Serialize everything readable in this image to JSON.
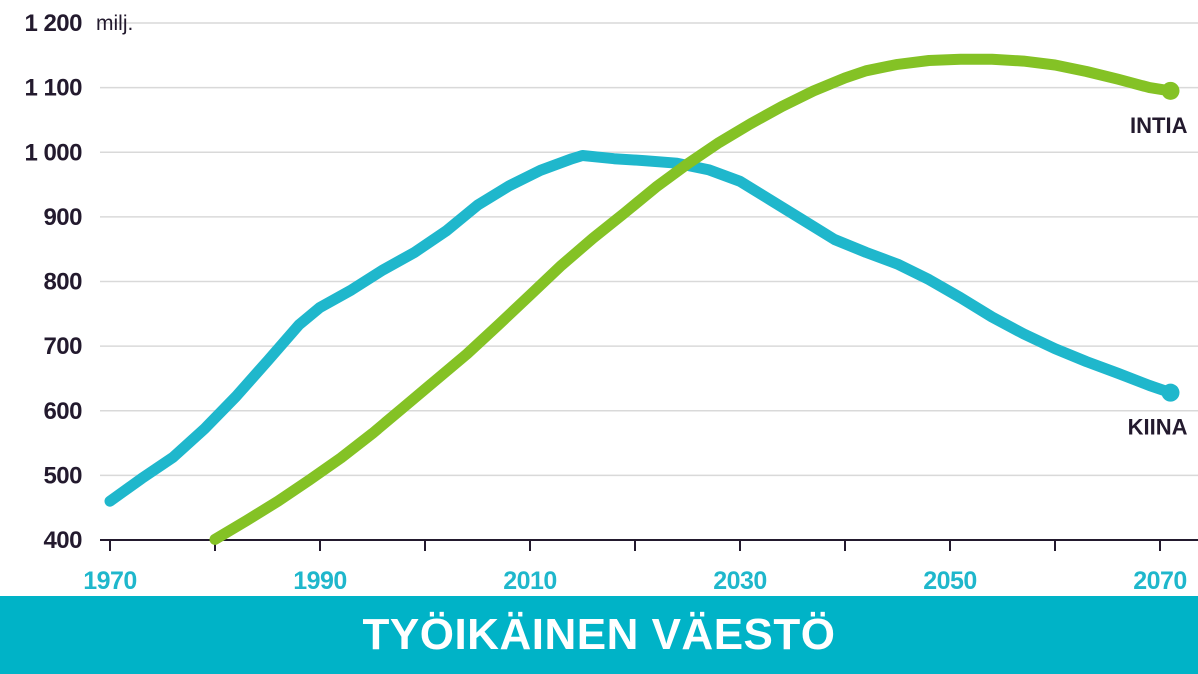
{
  "title": "TYÖIKÄINEN VÄESTÖ",
  "colors": {
    "intia": "#84c225",
    "kiina": "#1fb7cc",
    "title_bar": "#00b3c7",
    "x_tick": "#1fb7cc",
    "y_tick": "#231a2e",
    "grid": "#d9d9d9",
    "axis": "#231a2e"
  },
  "chart_data": {
    "type": "line",
    "unit": "milj.",
    "ylim": [
      400,
      1200
    ],
    "yticks": [
      400,
      500,
      600,
      700,
      800,
      900,
      1000,
      1100,
      1200
    ],
    "ytick_labels": [
      "400",
      "500",
      "600",
      "700",
      "800",
      "900",
      "1 000",
      "1 100",
      "1 200"
    ],
    "xlim": [
      1970,
      2070
    ],
    "xticks": [
      1970,
      1980,
      1990,
      2000,
      2010,
      2020,
      2030,
      2040,
      2050,
      2060,
      2070
    ],
    "xtick_labels": [
      "1970",
      "1990",
      "2010",
      "2030",
      "2050",
      "2070"
    ],
    "grid": true,
    "series": [
      {
        "name": "KIINA",
        "color": "#1fb7cc",
        "points": [
          [
            1970,
            460
          ],
          [
            1973,
            495
          ],
          [
            1976,
            528
          ],
          [
            1979,
            572
          ],
          [
            1982,
            622
          ],
          [
            1985,
            677
          ],
          [
            1988,
            733
          ],
          [
            1990,
            760
          ],
          [
            1993,
            787
          ],
          [
            1996,
            818
          ],
          [
            1999,
            845
          ],
          [
            2002,
            878
          ],
          [
            2005,
            918
          ],
          [
            2008,
            948
          ],
          [
            2011,
            972
          ],
          [
            2014,
            990
          ],
          [
            2015,
            995
          ],
          [
            2018,
            990
          ],
          [
            2021,
            987
          ],
          [
            2024,
            983
          ],
          [
            2027,
            973
          ],
          [
            2030,
            955
          ],
          [
            2033,
            925
          ],
          [
            2036,
            895
          ],
          [
            2039,
            865
          ],
          [
            2042,
            845
          ],
          [
            2045,
            827
          ],
          [
            2048,
            803
          ],
          [
            2051,
            775
          ],
          [
            2054,
            745
          ],
          [
            2057,
            719
          ],
          [
            2060,
            696
          ],
          [
            2063,
            676
          ],
          [
            2066,
            658
          ],
          [
            2069,
            639
          ],
          [
            2071,
            628
          ]
        ]
      },
      {
        "name": "INTIA",
        "color": "#84c225",
        "points": [
          [
            1980,
            401
          ],
          [
            1983,
            430
          ],
          [
            1986,
            460
          ],
          [
            1989,
            493
          ],
          [
            1992,
            527
          ],
          [
            1995,
            565
          ],
          [
            1998,
            606
          ],
          [
            2001,
            647
          ],
          [
            2004,
            688
          ],
          [
            2007,
            733
          ],
          [
            2010,
            779
          ],
          [
            2013,
            825
          ],
          [
            2016,
            867
          ],
          [
            2019,
            906
          ],
          [
            2022,
            946
          ],
          [
            2025,
            982
          ],
          [
            2028,
            1015
          ],
          [
            2031,
            1044
          ],
          [
            2034,
            1071
          ],
          [
            2037,
            1095
          ],
          [
            2040,
            1115
          ],
          [
            2042,
            1126
          ],
          [
            2045,
            1136
          ],
          [
            2048,
            1142
          ],
          [
            2051,
            1144
          ],
          [
            2054,
            1144
          ],
          [
            2057,
            1141
          ],
          [
            2060,
            1135
          ],
          [
            2063,
            1125
          ],
          [
            2066,
            1113
          ],
          [
            2069,
            1100
          ],
          [
            2071,
            1095
          ]
        ]
      }
    ]
  }
}
